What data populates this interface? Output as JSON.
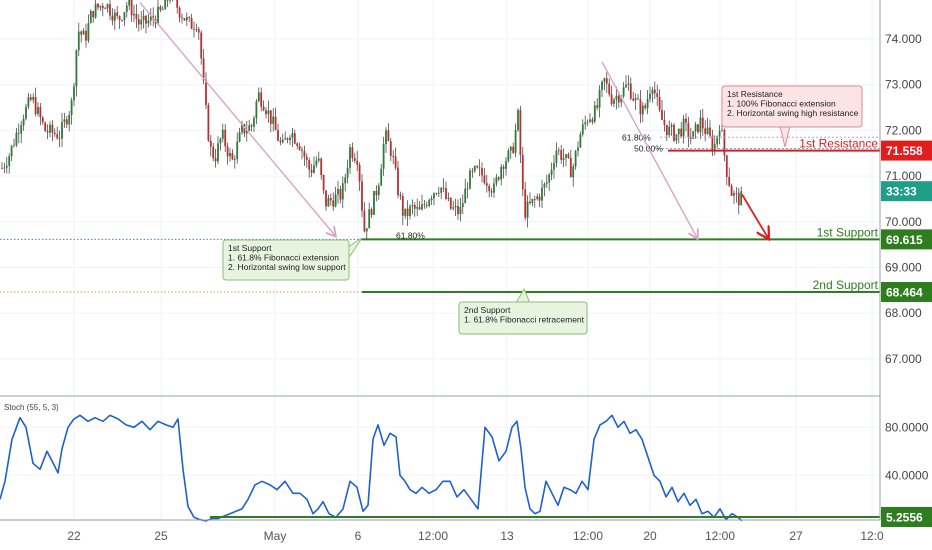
{
  "chart_data": [
    {
      "type": "candlestick",
      "title": "",
      "y_axis_ticks": [
        "74.000",
        "73.000",
        "72.000",
        "71.000",
        "70.000",
        "69.000",
        "68.000",
        "67.000"
      ],
      "ylim": [
        66.3,
        75.0
      ],
      "x_axis_ticks": [
        "22",
        "25",
        "May",
        "6",
        "12:00",
        "13",
        "12:00",
        "20",
        "12:00",
        "27",
        "12:0"
      ],
      "price_labels": {
        "resistance": {
          "name": "1st Resistance",
          "value": "71.558",
          "color": "#e01e1e"
        },
        "countdown": {
          "value": "33:33",
          "color": "#1f9e89"
        },
        "support1": {
          "name": "1st Support",
          "value": "69.615",
          "color": "#2e7d1f"
        },
        "support2": {
          "name": "2nd Support",
          "value": "68.464",
          "color": "#2e7d1f"
        }
      },
      "fib_labels": [
        "61.80%",
        "50.00%",
        "61.80%"
      ],
      "annotations": {
        "resistance": [
          "1st Resistance",
          "1. 100% Fibonacci extension",
          "2.  Horizontal swing high resistance"
        ],
        "support1": [
          "1st Support",
          "1. 61.8% Fibonacci extension",
          "2. Horizontal swing low support"
        ],
        "support2": [
          "2nd Support",
          "1. 61.8% Fibonacci retracement"
        ]
      },
      "path": [
        [
          0,
          71.1
        ],
        [
          10,
          71.5
        ],
        [
          22,
          72.3
        ],
        [
          32,
          72.7
        ],
        [
          45,
          72.0
        ],
        [
          60,
          71.9
        ],
        [
          72,
          72.6
        ],
        [
          78,
          74.2
        ],
        [
          85,
          74.0
        ],
        [
          92,
          74.6
        ],
        [
          105,
          74.8
        ],
        [
          118,
          74.4
        ],
        [
          128,
          74.8
        ],
        [
          140,
          74.3
        ],
        [
          150,
          74.4
        ],
        [
          162,
          74.6
        ],
        [
          170,
          75.0
        ],
        [
          180,
          74.6
        ],
        [
          190,
          74.3
        ],
        [
          198,
          74.4
        ],
        [
          205,
          72.6
        ],
        [
          210,
          71.6
        ],
        [
          215,
          71.4
        ],
        [
          222,
          71.9
        ],
        [
          232,
          71.3
        ],
        [
          242,
          72.0
        ],
        [
          252,
          72.1
        ],
        [
          258,
          72.8
        ],
        [
          264,
          72.6
        ],
        [
          272,
          72.2
        ],
        [
          282,
          71.6
        ],
        [
          290,
          72.0
        ],
        [
          300,
          71.7
        ],
        [
          310,
          71.1
        ],
        [
          318,
          71.4
        ],
        [
          325,
          70.4
        ],
        [
          333,
          70.5
        ],
        [
          342,
          70.6
        ],
        [
          350,
          71.6
        ],
        [
          358,
          71.4
        ],
        [
          364,
          69.8
        ],
        [
          370,
          70.2
        ],
        [
          378,
          70.8
        ],
        [
          385,
          71.9
        ],
        [
          392,
          71.5
        ],
        [
          398,
          70.7
        ],
        [
          404,
          70.1
        ],
        [
          412,
          70.3
        ],
        [
          420,
          70.2
        ],
        [
          430,
          70.6
        ],
        [
          440,
          70.8
        ],
        [
          450,
          70.3
        ],
        [
          460,
          70.2
        ],
        [
          468,
          70.9
        ],
        [
          476,
          71.1
        ],
        [
          484,
          71.0
        ],
        [
          494,
          70.7
        ],
        [
          502,
          71.3
        ],
        [
          512,
          71.5
        ],
        [
          518,
          72.3
        ],
        [
          524,
          70.2
        ],
        [
          532,
          70.4
        ],
        [
          540,
          70.6
        ],
        [
          548,
          70.9
        ],
        [
          556,
          71.6
        ],
        [
          564,
          71.4
        ],
        [
          572,
          71.1
        ],
        [
          580,
          71.9
        ],
        [
          588,
          72.3
        ],
        [
          596,
          72.4
        ],
        [
          604,
          73.1
        ],
        [
          612,
          72.7
        ],
        [
          620,
          72.8
        ],
        [
          628,
          73.0
        ],
        [
          636,
          72.6
        ],
        [
          644,
          72.4
        ],
        [
          652,
          73.1
        ],
        [
          660,
          72.3
        ],
        [
          668,
          72.0
        ],
        [
          676,
          71.9
        ],
        [
          684,
          72.1
        ],
        [
          692,
          71.8
        ],
        [
          700,
          72.2
        ],
        [
          708,
          71.9
        ],
        [
          714,
          71.6
        ],
        [
          720,
          72.2
        ],
        [
          726,
          71.2
        ],
        [
          732,
          70.6
        ],
        [
          738,
          70.5
        ],
        [
          742,
          70.5
        ]
      ],
      "overlay_arrows": [
        {
          "from": [
            140,
            74.8
          ],
          "to": [
            335,
            69.7
          ]
        },
        {
          "from": [
            602,
            73.5
          ],
          "to": [
            697,
            69.65
          ]
        },
        {
          "from": [
            742,
            70.6
          ],
          "to": [
            768,
            69.65
          ]
        }
      ]
    },
    {
      "type": "line",
      "title": "Stoch (55, 5, 3)",
      "y_axis_ticks": [
        "80.0000",
        "40.0000"
      ],
      "ylim": [
        0,
        100
      ],
      "value_label": {
        "value": "5.2556",
        "color": "#2e7d1f"
      },
      "support_level": 5.2556,
      "series": [
        {
          "x": [
            0,
            5,
            12,
            20,
            26,
            33,
            40,
            47,
            52,
            58,
            62,
            68,
            74,
            80,
            88,
            95,
            103,
            110,
            118,
            126,
            134,
            142,
            150,
            158,
            166,
            173,
            178,
            183,
            188,
            194,
            200,
            206,
            212,
            218,
            224,
            230,
            236,
            242,
            248,
            255,
            262,
            270,
            277,
            285,
            293,
            300,
            307,
            313,
            318,
            323,
            329,
            336,
            343,
            350,
            357,
            363,
            368,
            373,
            378,
            384,
            390,
            396,
            400,
            405,
            410,
            416,
            422,
            429,
            436,
            443,
            450,
            457,
            464,
            471,
            478,
            485,
            492,
            499,
            506,
            512,
            517,
            521,
            525,
            530,
            535,
            540,
            546,
            552,
            558,
            564,
            570,
            576,
            582,
            588,
            594,
            600,
            606,
            612,
            618,
            624,
            630,
            636,
            642,
            648,
            654,
            660,
            666,
            672,
            678,
            684,
            690,
            696,
            702,
            708,
            714,
            720,
            726,
            732,
            738,
            742
          ],
          "y": [
            20,
            35,
            70,
            88,
            80,
            50,
            45,
            60,
            52,
            42,
            62,
            80,
            87,
            90,
            85,
            88,
            85,
            90,
            87,
            82,
            80,
            85,
            78,
            85,
            82,
            80,
            87,
            45,
            14,
            5,
            3,
            2,
            4,
            4,
            6,
            8,
            10,
            12,
            20,
            32,
            35,
            32,
            28,
            35,
            25,
            25,
            20,
            8,
            12,
            18,
            8,
            5,
            12,
            35,
            30,
            10,
            15,
            70,
            82,
            65,
            75,
            72,
            40,
            35,
            28,
            25,
            30,
            25,
            28,
            35,
            35,
            22,
            28,
            20,
            12,
            80,
            72,
            52,
            60,
            80,
            85,
            62,
            30,
            12,
            8,
            10,
            35,
            25,
            15,
            30,
            28,
            25,
            35,
            28,
            70,
            82,
            85,
            90,
            80,
            85,
            75,
            78,
            70,
            55,
            40,
            35,
            22,
            30,
            18,
            25,
            15,
            20,
            8,
            10,
            5,
            12,
            3,
            8,
            5,
            2
          ]
        }
      ]
    }
  ]
}
